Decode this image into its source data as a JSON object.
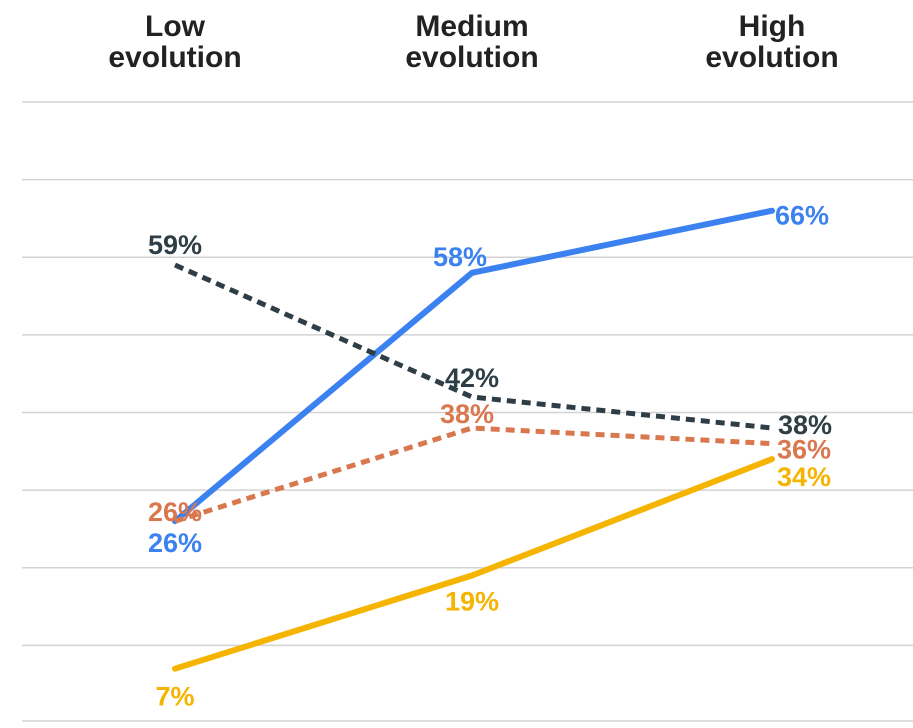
{
  "chart_data": {
    "type": "line",
    "title": "",
    "xlabel": "",
    "ylabel": "",
    "categories": [
      [
        "Low",
        "evolution"
      ],
      [
        "Medium",
        "evolution"
      ],
      [
        "High",
        "evolution"
      ]
    ],
    "ylim": [
      0,
      80
    ],
    "grid": true,
    "legend": "none",
    "series": [
      {
        "values": [
          26,
          58,
          66
        ],
        "labels": [
          "26%",
          "58%",
          "66%"
        ],
        "color": "#3B82F0",
        "style": "solid"
      },
      {
        "values": [
          59,
          42,
          38
        ],
        "labels": [
          "59%",
          "42%",
          "38%"
        ],
        "color": "#2F3E46",
        "style": "dotted"
      },
      {
        "values": [
          26,
          38,
          36
        ],
        "labels": [
          "26%",
          "38%",
          "36%"
        ],
        "color": "#D9774F",
        "style": "dotted"
      },
      {
        "values": [
          7,
          19,
          34
        ],
        "labels": [
          "7%",
          "19%",
          "34%"
        ],
        "color": "#F5B400",
        "style": "solid"
      }
    ]
  }
}
